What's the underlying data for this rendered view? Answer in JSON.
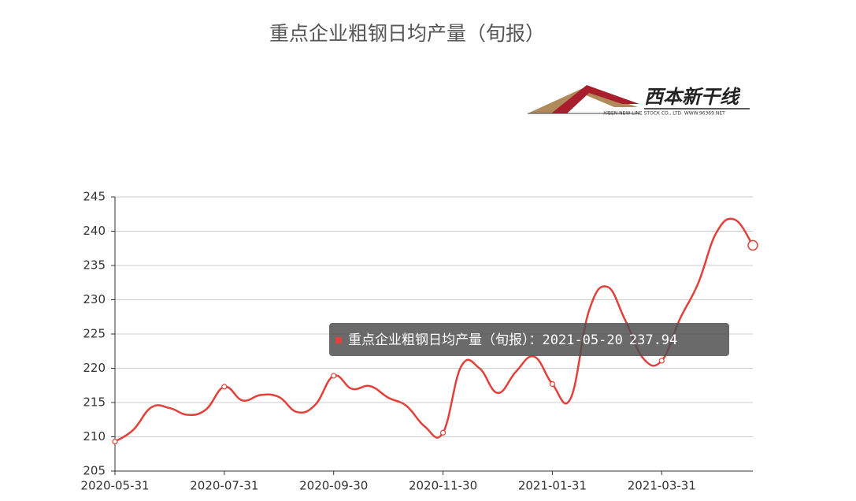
{
  "chart_data": {
    "type": "line",
    "title": "重点企业粗钢日均产量（旬报）",
    "logo": {
      "name": "西本新干线",
      "tagline": "XIBEN NEW LINE STOCK CO., LTD.  WWW.96369.NET"
    },
    "categories": [
      "2020-05-31",
      null,
      null,
      null,
      null,
      null,
      "2020-07-31",
      null,
      null,
      null,
      null,
      null,
      "2020-09-30",
      null,
      null,
      null,
      null,
      null,
      "2020-11-30",
      null,
      null,
      null,
      null,
      null,
      "2021-01-31",
      null,
      null,
      null,
      null,
      null,
      "2021-03-31",
      null,
      null,
      null,
      null,
      null
    ],
    "series": [
      {
        "name": "重点企业粗钢日均产量（旬报）",
        "color": "#e2403a",
        "values": [
          209.3,
          211,
          214.3,
          214.2,
          213.2,
          214,
          217.3,
          215.3,
          216.1,
          215.8,
          213.6,
          214.7,
          218.9,
          217,
          217.4,
          215.7,
          214.5,
          211.5,
          210.6,
          220.3,
          220,
          216.4,
          219.5,
          221.7,
          217.7,
          215.6,
          228.3,
          231.9,
          227,
          221.4,
          221.1,
          227.2,
          232.4,
          239.8,
          241.7,
          237.94
        ]
      }
    ],
    "ylim": [
      205,
      245
    ],
    "yticks": [
      205,
      210,
      215,
      220,
      225,
      230,
      235,
      240,
      245
    ],
    "grid": true,
    "tooltip": {
      "x": "2021-05-20",
      "separator": "："
    }
  }
}
